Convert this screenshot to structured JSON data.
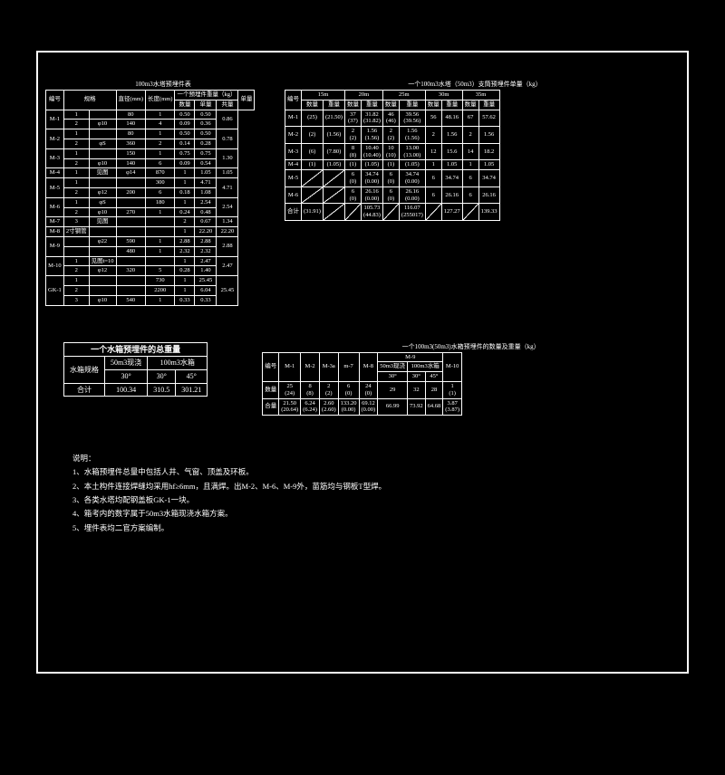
{
  "background_color": "#000000",
  "foreground_color": "#ffffff",
  "font_family": "SimSun",
  "table1": {
    "title": "100m3水塔预埋件表",
    "columns": [
      "编号",
      "规格",
      "直径(mm)",
      "长度(mm)",
      "数量",
      "单量",
      "共量",
      "单量"
    ],
    "sub_header": "一个预埋件重量（kg）",
    "rows": [
      [
        "M-1",
        "1",
        "",
        "80",
        "1",
        "0.50",
        "0.50",
        "0.86"
      ],
      [
        "",
        "2",
        "φ10",
        "140",
        "4",
        "0.09",
        "0.36",
        ""
      ],
      [
        "M-2",
        "1",
        "",
        "80",
        "1",
        "0.50",
        "0.50",
        "0.78"
      ],
      [
        "",
        "2",
        "φS",
        "360",
        "2",
        "0.14",
        "0.28",
        ""
      ],
      [
        "M-3",
        "1",
        "",
        "150",
        "1",
        "0.75",
        "0.75",
        "1.30"
      ],
      [
        "",
        "2",
        "φ10",
        "140",
        "6",
        "0.09",
        "0.54",
        ""
      ],
      [
        "M-4",
        "1",
        "见图",
        "φ14",
        "870",
        "1",
        "1.05",
        "1.05",
        "1.05"
      ],
      [
        "M-5",
        "1",
        "",
        "",
        "300",
        "1",
        "4.71",
        "4.71",
        "5.79"
      ],
      [
        "",
        "2",
        "φ12",
        "200",
        "6",
        "0.18",
        "1.08",
        ""
      ],
      [
        "M-6",
        "1",
        "φS",
        "",
        "180",
        "1",
        "2.54",
        "2.54",
        "4.36"
      ],
      [
        "",
        "2",
        "φ10",
        "270",
        "1",
        "0.24",
        "0.48",
        ""
      ],
      [
        "M-7",
        "3",
        "见图",
        "",
        "",
        "2",
        "0.67",
        "1.34",
        ""
      ],
      [
        "M-8",
        "2寸钢管",
        "",
        "",
        "",
        "1",
        "22.20",
        "22.20",
        "22.20"
      ],
      [
        "M-9",
        "",
        "φ22",
        "590",
        "1",
        "2.88",
        "2.88",
        "2.88"
      ],
      [
        "",
        "",
        "",
        "480",
        "1",
        "2.32",
        "2.32",
        "2.32"
      ],
      [
        "M-10",
        "1",
        "见图t=10",
        "",
        "",
        "1",
        "2.47",
        "2.47",
        "3.87"
      ],
      [
        "",
        "2",
        "φ12",
        "320",
        "5",
        "0.28",
        "1.40",
        ""
      ],
      [
        "GK-1",
        "1",
        "",
        "",
        "730",
        "1",
        "25.45",
        "25.45",
        "31.82"
      ],
      [
        "",
        "2",
        "",
        "",
        "2200",
        "1",
        "6.04",
        "6.04",
        ""
      ],
      [
        "",
        "3",
        "φ10",
        "540",
        "1",
        "0.33",
        "0.33",
        ""
      ]
    ]
  },
  "table2": {
    "title": "一个100m3水塔（50m3）支筒预埋件单量（kg）",
    "spans": [
      "15m",
      "20m",
      "25m",
      "30m",
      "35m"
    ],
    "col_pair": [
      "数量",
      "重量"
    ],
    "id_col": "编号",
    "rows_left": [
      "M-1",
      "M-2",
      "M-3",
      "M-4",
      "M-5",
      "M-6",
      "合计"
    ],
    "data": [
      [
        [
          "(25)",
          "(21.50)"
        ],
        [
          "37\n(37)",
          "31.82\n(31.82)"
        ],
        [
          "46\n(46)",
          "39.56\n(39.56)"
        ],
        [
          "56",
          "48.16"
        ],
        [
          "67",
          "57.62"
        ]
      ],
      [
        [
          "(2)",
          "(1.56)"
        ],
        [
          "2\n(2)",
          "1.56\n(1.56)"
        ],
        [
          "2\n(2)",
          "1.56\n(1.56)"
        ],
        [
          "2",
          "1.56"
        ],
        [
          "2",
          "1.56"
        ]
      ],
      [
        [
          "(6)",
          "(7.80)"
        ],
        [
          "8\n(8)",
          "10.40\n(10.40)"
        ],
        [
          "10\n(10)",
          "13.00\n(13.00)"
        ],
        [
          "12",
          "15.6"
        ],
        [
          "14",
          "18.2"
        ]
      ],
      [
        [
          "(1)",
          "(1.05)"
        ],
        [
          "(1)",
          "(1.05)"
        ],
        [
          "(1)",
          "(1.05)"
        ],
        [
          "1",
          "1.05"
        ],
        [
          "1",
          "1.05"
        ]
      ],
      [
        [
          "",
          ""
        ],
        [
          "6\n(0)",
          "34.74\n(0.00)"
        ],
        [
          "6\n(0)",
          "34.74\n(0.00)"
        ],
        [
          "6",
          "34.74"
        ],
        [
          "6",
          "34.74"
        ]
      ],
      [
        [
          "",
          ""
        ],
        [
          "6\n(0)",
          "26.16\n(0.00)"
        ],
        [
          "6\n(0)",
          "26.16\n(0.00)"
        ],
        [
          "6",
          "26.16"
        ],
        [
          "6",
          "26.16"
        ]
      ],
      [
        [
          "(31.91)",
          ""
        ],
        [
          "",
          "105.73\n(44.83)"
        ],
        [
          "",
          "116.07\n(255017)"
        ],
        [
          "",
          "127.27"
        ],
        [
          "",
          "139.33"
        ]
      ]
    ]
  },
  "table3": {
    "title": "一个水箱预埋件的总重量",
    "rows": [
      [
        "水箱规格",
        "50m3现浇",
        "100m3水箱",
        ""
      ],
      [
        "",
        "30°",
        "30°",
        "45°"
      ],
      [
        "合计",
        "100.34",
        "310.5",
        "301.21"
      ]
    ]
  },
  "table4": {
    "title": "一个100m3(50m3)水箱预埋件的数量及重量（kg）",
    "group_headers": [
      "",
      "",
      "",
      "",
      "",
      "",
      "M-9",
      ""
    ],
    "sub_group": [
      "50m3现浇",
      "100m3水箱"
    ],
    "cols": [
      "编号",
      "M-1",
      "M-2",
      "M-3a",
      "m-7",
      "M-8",
      "30°",
      "30°",
      "45°",
      "M-10"
    ],
    "rows": [
      [
        "数量",
        "25\n(24)",
        "8\n(8)",
        "2\n(2)",
        "6\n(0)",
        "24\n(0)",
        "29",
        "32",
        "28",
        "1\n(1)"
      ],
      [
        "合量",
        "21.50\n(20.64)",
        "6.24\n(6.24)",
        "2.60\n(2.60)",
        "133.20\n(0.00)",
        "69.12\n(0.00)",
        "66.99",
        "73.92",
        "64.68",
        "3.87\n(3.87)"
      ]
    ]
  },
  "notes": {
    "title": "说明：",
    "items": [
      "1、水箱预埋件总量中包括人井、气窗、顶盖及环板。",
      "2、本土构件连接焊缝均采用hf≥6mm，且满焊。出M-2、M-6、M-9外，苗筋均与钢板T型焊。",
      "3、各类水塔均配钢盖板GK-1一块。",
      "4、箱考内的数字属于50m3水箱现浇水箱方案。",
      "5、埋件表均二官方案编制。"
    ]
  }
}
